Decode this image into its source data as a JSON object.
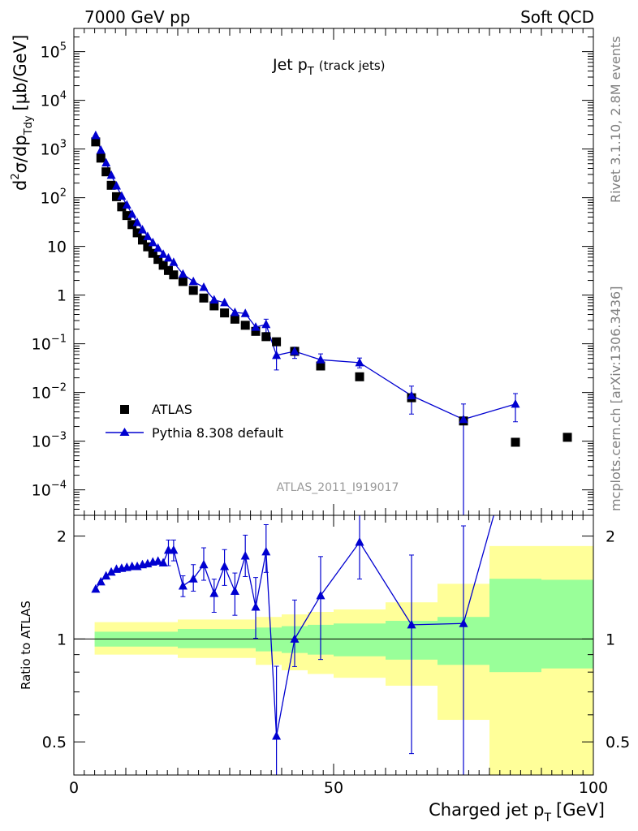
{
  "header": {
    "left": "7000 GeV pp",
    "right": "Soft QCD"
  },
  "side_text": {
    "top": "Rivet 3.1.10,  2.8M events",
    "bottom": "mcplots.cern.ch [arXiv:1306.3436]"
  },
  "colors": {
    "atlas": "#000000",
    "pythia": "#0000d0",
    "band_inner": "#99ff99",
    "band_outer": "#ffff99"
  },
  "chart_data": [
    {
      "type": "scatter",
      "title": "Jet p_T (track jets)",
      "title_main": "Jet p",
      "title_sub": "T",
      "title_extra": "(track jets)",
      "analysis_label": "ATLAS_2011_I919017",
      "ylabel_parts": {
        "d": "d",
        "sup": "2",
        "mid": "σ/dp",
        "sub": "Tdy",
        "unit": "[μb/GeV]"
      },
      "yscale": "log",
      "ylim": [
        3e-05,
        300000.0
      ],
      "xlim": [
        0,
        100
      ],
      "yticks": [
        {
          "v": 100000.0,
          "base": "10",
          "exp": "5"
        },
        {
          "v": 10000.0,
          "base": "10",
          "exp": "4"
        },
        {
          "v": 1000.0,
          "base": "10",
          "exp": "3"
        },
        {
          "v": 100.0,
          "base": "10",
          "exp": "2"
        },
        {
          "v": 10,
          "base": "10",
          "exp": ""
        },
        {
          "v": 1,
          "base": "1",
          "exp": ""
        },
        {
          "v": 0.1,
          "base": "10",
          "exp": "−1"
        },
        {
          "v": 0.01,
          "base": "10",
          "exp": "−2"
        },
        {
          "v": 0.001,
          "base": "10",
          "exp": "−3"
        },
        {
          "v": 0.0001,
          "base": "10",
          "exp": "−4"
        }
      ],
      "legend": [
        {
          "name": "ATLAS",
          "marker": "square"
        },
        {
          "name": "Pythia 8.308 default",
          "marker": "triangle"
        }
      ],
      "series": [
        {
          "name": "ATLAS",
          "points": [
            {
              "x": 4.2,
              "y": 1400
            },
            {
              "x": 5.2,
              "y": 650
            },
            {
              "x": 6.2,
              "y": 340
            },
            {
              "x": 7.2,
              "y": 180
            },
            {
              "x": 8.2,
              "y": 105
            },
            {
              "x": 9.2,
              "y": 65
            },
            {
              "x": 10.2,
              "y": 43
            },
            {
              "x": 11.2,
              "y": 28
            },
            {
              "x": 12.2,
              "y": 19
            },
            {
              "x": 13.2,
              "y": 13.5
            },
            {
              "x": 14.2,
              "y": 9.8
            },
            {
              "x": 15.2,
              "y": 7.2
            },
            {
              "x": 16.2,
              "y": 5.4
            },
            {
              "x": 17.2,
              "y": 4.1
            },
            {
              "x": 18.2,
              "y": 3.2
            },
            {
              "x": 19.2,
              "y": 2.6
            },
            {
              "x": 21,
              "y": 1.9
            },
            {
              "x": 23,
              "y": 1.25
            },
            {
              "x": 25,
              "y": 0.87
            },
            {
              "x": 27,
              "y": 0.6
            },
            {
              "x": 29,
              "y": 0.43
            },
            {
              "x": 31,
              "y": 0.32
            },
            {
              "x": 33,
              "y": 0.24
            },
            {
              "x": 35,
              "y": 0.18
            },
            {
              "x": 37,
              "y": 0.14
            },
            {
              "x": 39,
              "y": 0.11
            },
            {
              "x": 42.5,
              "y": 0.07
            },
            {
              "x": 47.5,
              "y": 0.035
            },
            {
              "x": 55,
              "y": 0.021
            },
            {
              "x": 65,
              "y": 0.0078
            },
            {
              "x": 75,
              "y": 0.0026
            },
            {
              "x": 85,
              "y": 0.00095
            },
            {
              "x": 95,
              "y": 0.0012
            }
          ]
        },
        {
          "name": "Pythia 8.308 default",
          "points": [
            {
              "x": 4.2,
              "y": 1900
            },
            {
              "x": 5.2,
              "y": 950
            },
            {
              "x": 6.2,
              "y": 520
            },
            {
              "x": 7.2,
              "y": 290
            },
            {
              "x": 8.2,
              "y": 175
            },
            {
              "x": 9.2,
              "y": 108
            },
            {
              "x": 10.2,
              "y": 71
            },
            {
              "x": 11.2,
              "y": 46
            },
            {
              "x": 12.2,
              "y": 31
            },
            {
              "x": 13.2,
              "y": 22
            },
            {
              "x": 14.2,
              "y": 16
            },
            {
              "x": 15.2,
              "y": 12
            },
            {
              "x": 16.2,
              "y": 9.2
            },
            {
              "x": 17.2,
              "y": 6.9
            },
            {
              "x": 18.2,
              "y": 5.8
            },
            {
              "x": 19.2,
              "y": 4.7
            },
            {
              "x": 21,
              "y": 2.7
            },
            {
              "x": 23,
              "y": 1.9
            },
            {
              "x": 25,
              "y": 1.45
            },
            {
              "x": 27,
              "y": 0.8
            },
            {
              "x": 29,
              "y": 0.7
            },
            {
              "x": 31,
              "y": 0.44
            },
            {
              "x": 33,
              "y": 0.42
            },
            {
              "x": 35,
              "y": 0.22
            },
            {
              "x": 37,
              "y": 0.25,
              "ylo": 0.17,
              "yhi": 0.32
            },
            {
              "x": 39,
              "y": 0.058,
              "ylo": 0.029,
              "yhi": 0.095
            },
            {
              "x": 42.5,
              "y": 0.07,
              "ylo": 0.05,
              "yhi": 0.085
            },
            {
              "x": 47.5,
              "y": 0.047,
              "ylo": 0.035,
              "yhi": 0.062
            },
            {
              "x": 55,
              "y": 0.041,
              "ylo": 0.032,
              "yhi": 0.051
            },
            {
              "x": 65,
              "y": 0.0086,
              "ylo": 0.0036,
              "yhi": 0.0135
            },
            {
              "x": 75,
              "y": 0.0028,
              "ylo": 1e-05,
              "yhi": 0.0058
            },
            {
              "x": 85,
              "y": 0.0058,
              "ylo": 0.0025,
              "yhi": 0.0095
            }
          ]
        }
      ]
    },
    {
      "type": "scatter",
      "ylabel": "Ratio to ATLAS",
      "xlabel_main": "Charged jet p",
      "xlabel_sub": "T",
      "xlabel_unit": "[GeV]",
      "yscale": "log",
      "ylim": [
        0.4,
        2.3
      ],
      "xlim": [
        0,
        100
      ],
      "yticks": [
        {
          "v": 0.5,
          "label": "0.5"
        },
        {
          "v": 1,
          "label": "1"
        },
        {
          "v": 2,
          "label": "2"
        }
      ],
      "xticks": [
        {
          "v": 0,
          "label": "0"
        },
        {
          "v": 50,
          "label": "50"
        },
        {
          "v": 100,
          "label": "100"
        }
      ],
      "reference_line": 1,
      "uncertainty_bands": [
        {
          "x0": 4,
          "x1": 20,
          "inner": [
            0.95,
            1.05
          ],
          "outer": [
            0.9,
            1.12
          ]
        },
        {
          "x0": 20,
          "x1": 35,
          "inner": [
            0.94,
            1.07
          ],
          "outer": [
            0.88,
            1.14
          ]
        },
        {
          "x0": 35,
          "x1": 40,
          "inner": [
            0.92,
            1.08
          ],
          "outer": [
            0.84,
            1.16
          ]
        },
        {
          "x0": 40,
          "x1": 45,
          "inner": [
            0.91,
            1.09
          ],
          "outer": [
            0.81,
            1.18
          ]
        },
        {
          "x0": 45,
          "x1": 50,
          "inner": [
            0.9,
            1.1
          ],
          "outer": [
            0.79,
            1.2
          ]
        },
        {
          "x0": 50,
          "x1": 60,
          "inner": [
            0.89,
            1.11
          ],
          "outer": [
            0.77,
            1.22
          ]
        },
        {
          "x0": 60,
          "x1": 70,
          "inner": [
            0.87,
            1.13
          ],
          "outer": [
            0.73,
            1.28
          ]
        },
        {
          "x0": 70,
          "x1": 80,
          "inner": [
            0.84,
            1.16
          ],
          "outer": [
            0.58,
            1.45
          ]
        },
        {
          "x0": 80,
          "x1": 90,
          "inner": [
            0.8,
            1.5
          ],
          "outer": [
            0.4,
            1.87
          ]
        },
        {
          "x0": 90,
          "x1": 100,
          "inner": [
            0.82,
            1.49
          ],
          "outer": [
            0.4,
            1.87
          ]
        }
      ],
      "series": [
        {
          "name": "Pythia 8.308 default",
          "points": [
            {
              "x": 4.2,
              "y": 1.4
            },
            {
              "x": 5.2,
              "y": 1.47
            },
            {
              "x": 6.2,
              "y": 1.53
            },
            {
              "x": 7.2,
              "y": 1.57
            },
            {
              "x": 8.2,
              "y": 1.6
            },
            {
              "x": 9.2,
              "y": 1.61
            },
            {
              "x": 10.2,
              "y": 1.62
            },
            {
              "x": 11.2,
              "y": 1.63
            },
            {
              "x": 12.2,
              "y": 1.63
            },
            {
              "x": 13.2,
              "y": 1.65
            },
            {
              "x": 14.2,
              "y": 1.66
            },
            {
              "x": 15.2,
              "y": 1.68
            },
            {
              "x": 16.2,
              "y": 1.69
            },
            {
              "x": 17.2,
              "y": 1.67
            },
            {
              "x": 18.2,
              "y": 1.82
            },
            {
              "x": 19.2,
              "y": 1.82
            },
            {
              "x": 21,
              "y": 1.43
            },
            {
              "x": 23,
              "y": 1.5
            },
            {
              "x": 25,
              "y": 1.65
            },
            {
              "x": 27,
              "y": 1.36
            },
            {
              "x": 29,
              "y": 1.63
            },
            {
              "x": 31,
              "y": 1.38
            },
            {
              "x": 33,
              "y": 1.75
            },
            {
              "x": 35,
              "y": 1.24
            },
            {
              "x": 37,
              "y": 1.8
            },
            {
              "x": 39,
              "y": 0.52
            },
            {
              "x": 42.5,
              "y": 1.0
            },
            {
              "x": 47.5,
              "y": 1.34
            },
            {
              "x": 55,
              "y": 1.92
            },
            {
              "x": 65,
              "y": 1.1
            },
            {
              "x": 75,
              "y": 1.11
            },
            {
              "x": 81,
              "y": 2.35
            }
          ]
        }
      ]
    }
  ]
}
